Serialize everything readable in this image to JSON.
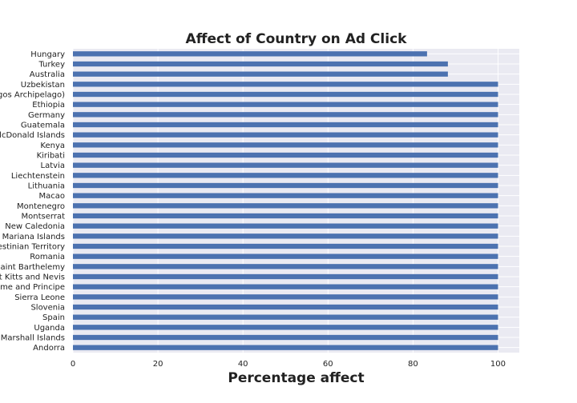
{
  "chart_data": {
    "type": "bar",
    "orientation": "horizontal",
    "title": "Affect of Country on Ad Click",
    "xlabel": "Percentage affect",
    "ylabel": "",
    "xlim": [
      0,
      105
    ],
    "xticks": [
      0,
      20,
      40,
      60,
      80,
      100
    ],
    "grid": true,
    "bar_color": "#4c72b0",
    "background_color": "#eaeaf2",
    "categories": [
      "Hungary",
      "Turkey",
      "Australia",
      "Uzbekistan",
      "gos Archipelago)",
      "Ethiopia",
      "Germany",
      "Guatemala",
      "lcDonald Islands",
      "Kenya",
      "Kiribati",
      "Latvia",
      "Liechtenstein",
      "Lithuania",
      "Macao",
      "Montenegro",
      "Montserrat",
      "New Caledonia",
      "Mariana Islands",
      "estinian Territory",
      "Romania",
      "Saint Barthelemy",
      "t Kitts and Nevis",
      "me and Principe",
      "Sierra Leone",
      "Slovenia",
      "Spain",
      "Uganda",
      "Marshall Islands",
      "Andorra"
    ],
    "values": [
      83.3,
      88.2,
      88.2,
      100,
      100,
      100,
      100,
      100,
      100,
      100,
      100,
      100,
      100,
      100,
      100,
      100,
      100,
      100,
      100,
      100,
      100,
      100,
      100,
      100,
      100,
      100,
      100,
      100,
      100,
      100
    ]
  }
}
